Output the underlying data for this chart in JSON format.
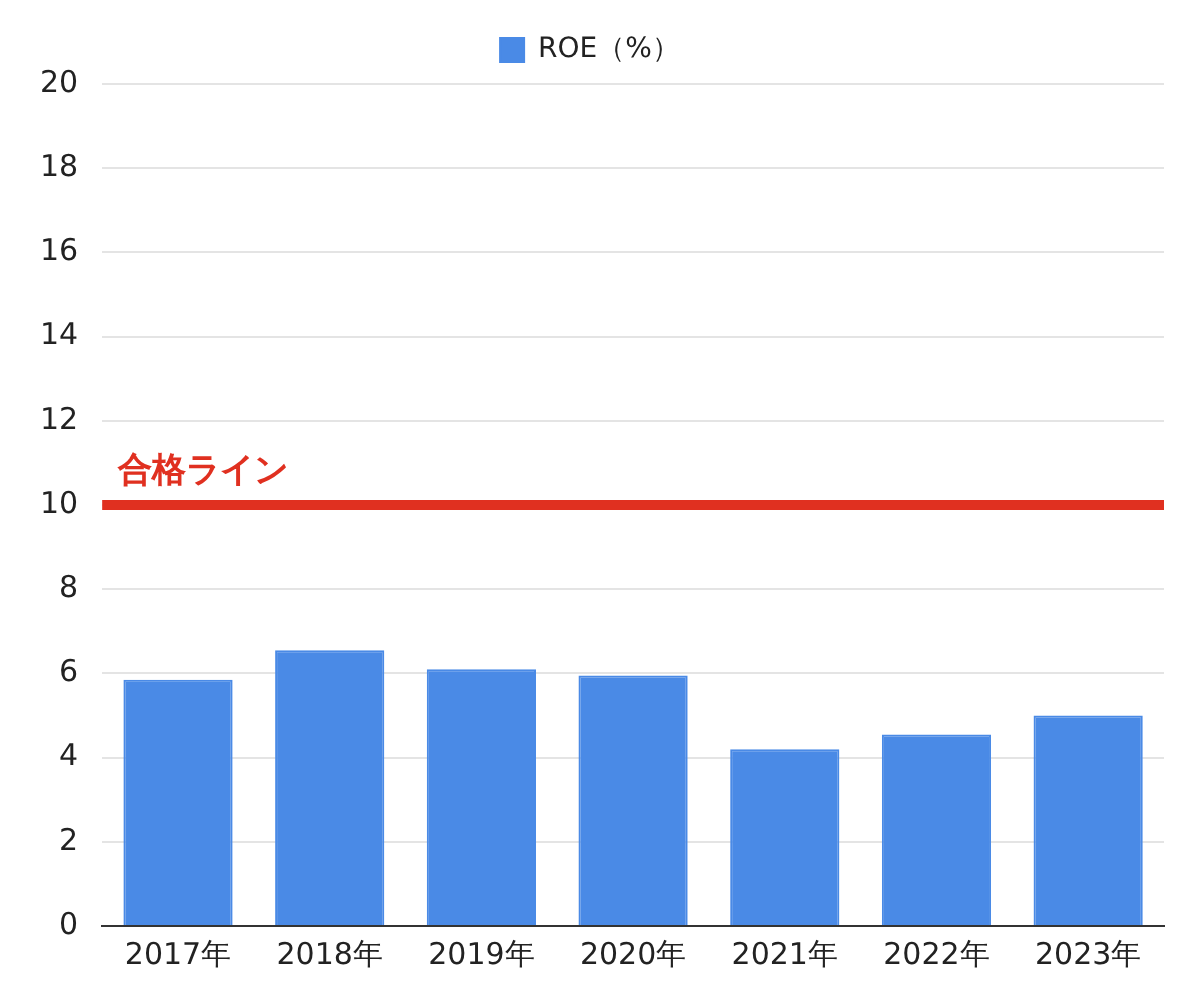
{
  "chart_data": {
    "type": "bar",
    "categories": [
      "2017年",
      "2018年",
      "2019年",
      "2020年",
      "2021年",
      "2022年",
      "2023年"
    ],
    "series": [
      {
        "name": "ROE（%）",
        "color": "#4a8ae6",
        "values": [
          5.85,
          6.55,
          6.1,
          5.95,
          4.2,
          4.55,
          5.0
        ]
      }
    ],
    "ylim": [
      0,
      20
    ],
    "yticks": [
      0,
      2,
      4,
      6,
      8,
      10,
      12,
      14,
      16,
      18,
      20
    ],
    "grid": "y",
    "legend": "top",
    "ref_lines": [
      {
        "axis": "y",
        "value": 10,
        "label": "合格ライン",
        "color": "#e03020"
      }
    ]
  }
}
